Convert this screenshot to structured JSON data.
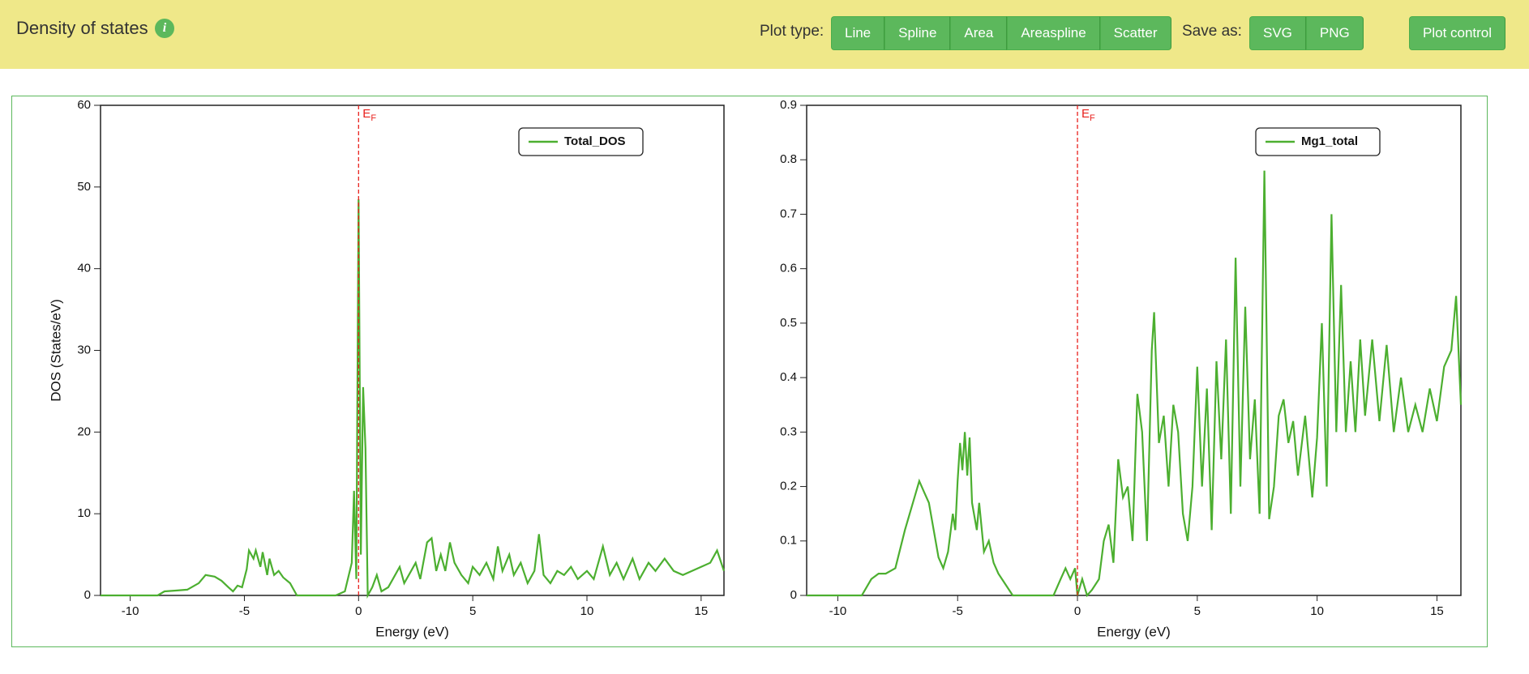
{
  "header": {
    "title": "Density of states",
    "plot_type_label": "Plot type:",
    "plot_types": [
      "Line",
      "Spline",
      "Area",
      "Areaspline",
      "Scatter"
    ],
    "save_as_label": "Save as:",
    "save_formats": [
      "SVG",
      "PNG"
    ],
    "plot_control": "Plot control"
  },
  "chart_data": [
    {
      "type": "line",
      "x_label": "Energy (eV)",
      "y_label": "DOS (States/eV)",
      "legend": "top-right",
      "xlim": [
        -11.3,
        16
      ],
      "xticks": [
        -10,
        -5,
        0,
        5,
        10,
        15
      ],
      "ylim": [
        0,
        60
      ],
      "yticks": [
        0,
        10,
        20,
        30,
        40,
        50,
        60
      ],
      "fermi": {
        "x": 0,
        "label": "E",
        "subscript": "F",
        "color": "#e8201c"
      },
      "x": [
        -11.3,
        -10,
        -9,
        -8.8,
        -8.5,
        -8,
        -7.5,
        -7,
        -6.7,
        -6.3,
        -6,
        -5.7,
        -5.5,
        -5.3,
        -5.1,
        -4.9,
        -4.8,
        -4.6,
        -4.5,
        -4.3,
        -4.2,
        -4,
        -3.9,
        -3.7,
        -3.5,
        -3.3,
        -3,
        -2.7,
        -1,
        -0.6,
        -0.3,
        -0.2,
        -0.1,
        0,
        0.1,
        0.2,
        0.3,
        0.4,
        0.6,
        0.8,
        1,
        1.3,
        1.5,
        1.8,
        2,
        2.3,
        2.5,
        2.7,
        3,
        3.2,
        3.4,
        3.6,
        3.8,
        4,
        4.2,
        4.5,
        4.8,
        5,
        5.3,
        5.6,
        5.9,
        6.1,
        6.3,
        6.6,
        6.8,
        7.1,
        7.4,
        7.7,
        7.9,
        8.1,
        8.4,
        8.7,
        9,
        9.3,
        9.6,
        10,
        10.3,
        10.7,
        11,
        11.3,
        11.6,
        12,
        12.3,
        12.7,
        13,
        13.4,
        13.8,
        14.2,
        14.6,
        15,
        15.4,
        15.7,
        16
      ],
      "series": [
        {
          "name": "Total_DOS",
          "color": "#4caf30",
          "values": [
            0,
            0,
            0,
            0,
            0.5,
            0.6,
            0.7,
            1.5,
            2.5,
            2.3,
            1.8,
            1,
            0.5,
            1.2,
            1,
            3.2,
            5.5,
            4.5,
            5.5,
            3.5,
            5.3,
            2.5,
            4.5,
            2.5,
            3,
            2.2,
            1.5,
            0,
            0,
            0.5,
            4,
            12.8,
            2,
            48.5,
            5,
            25.5,
            18,
            0,
            1,
            2.5,
            0.5,
            1,
            2,
            3.5,
            1.5,
            3,
            4,
            2,
            6.5,
            7,
            3,
            5,
            3,
            6.5,
            4,
            2.5,
            1.5,
            3.5,
            2.5,
            4,
            2,
            6,
            3,
            5,
            2.5,
            4,
            1.5,
            3,
            7.5,
            2.5,
            1.5,
            3,
            2.5,
            3.5,
            2,
            3,
            2,
            6,
            2.5,
            4,
            2,
            4.5,
            2,
            4,
            3,
            4.5,
            3,
            2.5,
            3,
            3.5,
            4,
            5.5,
            3
          ]
        }
      ]
    },
    {
      "type": "line",
      "x_label": "Energy (eV)",
      "legend": "top-right",
      "xlim": [
        -11.3,
        16
      ],
      "xticks": [
        -10,
        -5,
        0,
        5,
        10,
        15
      ],
      "ylim": [
        0,
        0.9
      ],
      "yticks": [
        0,
        0.1,
        0.2,
        0.3,
        0.4,
        0.5,
        0.6,
        0.7,
        0.8,
        0.9
      ],
      "fermi": {
        "x": 0,
        "label": "E",
        "subscript": "F",
        "color": "#e8201c"
      },
      "x": [
        -11.3,
        -9,
        -8.6,
        -8.3,
        -8,
        -7.6,
        -7.2,
        -6.8,
        -6.6,
        -6.4,
        -6.2,
        -6,
        -5.8,
        -5.6,
        -5.4,
        -5.2,
        -5.1,
        -5,
        -4.9,
        -4.8,
        -4.7,
        -4.6,
        -4.5,
        -4.4,
        -4.2,
        -4.1,
        -3.9,
        -3.7,
        -3.5,
        -3.3,
        -3,
        -2.7,
        -1,
        -0.7,
        -0.5,
        -0.3,
        -0.1,
        0,
        0.2,
        0.4,
        0.6,
        0.9,
        1.1,
        1.3,
        1.5,
        1.7,
        1.9,
        2.1,
        2.3,
        2.5,
        2.7,
        2.9,
        3.1,
        3.2,
        3.4,
        3.6,
        3.8,
        4,
        4.2,
        4.4,
        4.6,
        4.8,
        5,
        5.2,
        5.4,
        5.6,
        5.8,
        6,
        6.2,
        6.4,
        6.6,
        6.8,
        7,
        7.2,
        7.4,
        7.6,
        7.8,
        8,
        8.2,
        8.4,
        8.6,
        8.8,
        9,
        9.2,
        9.5,
        9.8,
        10,
        10.2,
        10.4,
        10.6,
        10.8,
        11,
        11.2,
        11.4,
        11.6,
        11.8,
        12,
        12.3,
        12.6,
        12.9,
        13.2,
        13.5,
        13.8,
        14.1,
        14.4,
        14.7,
        15,
        15.3,
        15.6,
        15.8,
        16
      ],
      "series": [
        {
          "name": "Mg1_total",
          "color": "#4caf30",
          "values": [
            0,
            0,
            0.03,
            0.04,
            0.04,
            0.05,
            0.12,
            0.18,
            0.21,
            0.19,
            0.17,
            0.12,
            0.07,
            0.05,
            0.08,
            0.15,
            0.12,
            0.21,
            0.28,
            0.23,
            0.3,
            0.22,
            0.29,
            0.17,
            0.12,
            0.17,
            0.08,
            0.1,
            0.06,
            0.04,
            0.02,
            0,
            0,
            0.03,
            0.05,
            0.03,
            0.05,
            0,
            0.03,
            0,
            0.01,
            0.03,
            0.1,
            0.13,
            0.06,
            0.25,
            0.18,
            0.2,
            0.1,
            0.37,
            0.3,
            0.1,
            0.45,
            0.52,
            0.28,
            0.33,
            0.2,
            0.35,
            0.3,
            0.15,
            0.1,
            0.2,
            0.42,
            0.2,
            0.38,
            0.12,
            0.43,
            0.25,
            0.47,
            0.15,
            0.62,
            0.2,
            0.53,
            0.25,
            0.36,
            0.15,
            0.78,
            0.14,
            0.2,
            0.33,
            0.36,
            0.28,
            0.32,
            0.22,
            0.33,
            0.18,
            0.29,
            0.5,
            0.2,
            0.7,
            0.3,
            0.57,
            0.3,
            0.43,
            0.3,
            0.47,
            0.33,
            0.47,
            0.32,
            0.46,
            0.3,
            0.4,
            0.3,
            0.35,
            0.3,
            0.38,
            0.32,
            0.42,
            0.45,
            0.55,
            0.35
          ]
        }
      ]
    }
  ]
}
